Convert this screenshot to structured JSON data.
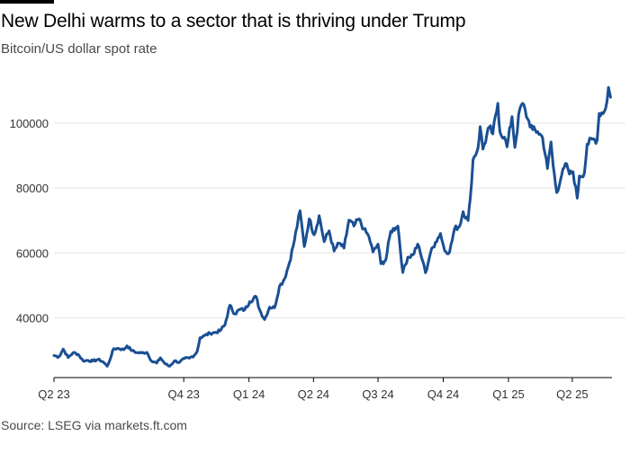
{
  "header": {
    "title": "New Delhi warms to a sector that is thriving under Trump",
    "subtitle": "Bitcoin/US dollar spot rate"
  },
  "footer": {
    "source": "Source: LSEG via markets.ft.com"
  },
  "colors": {
    "line": "#1a4f93",
    "grid": "#e6e6e6",
    "axis": "#000000",
    "tick_label": "#333333"
  },
  "chart_data": {
    "type": "line",
    "title": "New Delhi warms to a sector that is thriving under Trump",
    "subtitle": "Bitcoin/US dollar spot rate",
    "xlabel": "",
    "ylabel": "",
    "ylim": [
      23000,
      113000
    ],
    "grid": true,
    "y_ticks": [
      40000,
      60000,
      80000,
      100000
    ],
    "y_tick_labels": [
      "40000",
      "60000",
      "80000",
      "100000"
    ],
    "x_ticks": [
      {
        "label": "Q2 23",
        "date": "2023-04-01"
      },
      {
        "label": "Q4 23",
        "date": "2023-10-01"
      },
      {
        "label": "Q1 24",
        "date": "2024-01-01"
      },
      {
        "label": "Q2 24",
        "date": "2024-04-01"
      },
      {
        "label": "Q3 24",
        "date": "2024-07-01"
      },
      {
        "label": "Q4 24",
        "date": "2024-10-01"
      },
      {
        "label": "Q1 25",
        "date": "2025-01-01"
      },
      {
        "label": "Q2 25",
        "date": "2025-04-01"
      }
    ],
    "series": [
      {
        "points": [
          [
            "2023-04-01",
            28400
          ],
          [
            "2023-04-08",
            28000
          ],
          [
            "2023-04-14",
            30400
          ],
          [
            "2023-04-21",
            27800
          ],
          [
            "2023-04-28",
            29300
          ],
          [
            "2023-05-05",
            28800
          ],
          [
            "2023-05-12",
            26800
          ],
          [
            "2023-05-19",
            26900
          ],
          [
            "2023-05-26",
            26700
          ],
          [
            "2023-06-02",
            27200
          ],
          [
            "2023-06-09",
            26500
          ],
          [
            "2023-06-15",
            25100
          ],
          [
            "2023-06-21",
            28400
          ],
          [
            "2023-06-24",
            30500
          ],
          [
            "2023-07-01",
            30600
          ],
          [
            "2023-07-08",
            30200
          ],
          [
            "2023-07-13",
            31400
          ],
          [
            "2023-07-20",
            29900
          ],
          [
            "2023-07-27",
            29300
          ],
          [
            "2023-08-03",
            29200
          ],
          [
            "2023-08-10",
            29400
          ],
          [
            "2023-08-17",
            26600
          ],
          [
            "2023-08-24",
            26100
          ],
          [
            "2023-08-29",
            27700
          ],
          [
            "2023-09-05",
            25800
          ],
          [
            "2023-09-11",
            25100
          ],
          [
            "2023-09-18",
            26800
          ],
          [
            "2023-09-25",
            26300
          ],
          [
            "2023-10-02",
            27500
          ],
          [
            "2023-10-09",
            27600
          ],
          [
            "2023-10-16",
            28500
          ],
          [
            "2023-10-20",
            29700
          ],
          [
            "2023-10-24",
            33900
          ],
          [
            "2023-10-31",
            34600
          ],
          [
            "2023-11-07",
            35300
          ],
          [
            "2023-11-14",
            35500
          ],
          [
            "2023-11-21",
            36000
          ],
          [
            "2023-11-28",
            37800
          ],
          [
            "2023-12-05",
            43900
          ],
          [
            "2023-12-12",
            41200
          ],
          [
            "2023-12-19",
            42600
          ],
          [
            "2023-12-26",
            42500
          ],
          [
            "2024-01-02",
            45000
          ],
          [
            "2024-01-11",
            46600
          ],
          [
            "2024-01-16",
            42500
          ],
          [
            "2024-01-23",
            39500
          ],
          [
            "2024-01-30",
            43300
          ],
          [
            "2024-02-06",
            43100
          ],
          [
            "2024-02-13",
            49700
          ],
          [
            "2024-02-20",
            52000
          ],
          [
            "2024-02-27",
            57000
          ],
          [
            "2024-03-05",
            63800
          ],
          [
            "2024-03-13",
            73000
          ],
          [
            "2024-03-19",
            62000
          ],
          [
            "2024-03-26",
            70500
          ],
          [
            "2024-04-02",
            65600
          ],
          [
            "2024-04-09",
            71500
          ],
          [
            "2024-04-16",
            63500
          ],
          [
            "2024-04-23",
            66800
          ],
          [
            "2024-04-30",
            60600
          ],
          [
            "2024-05-07",
            63000
          ],
          [
            "2024-05-14",
            61500
          ],
          [
            "2024-05-21",
            70100
          ],
          [
            "2024-05-28",
            68300
          ],
          [
            "2024-06-04",
            70500
          ],
          [
            "2024-06-11",
            67300
          ],
          [
            "2024-06-18",
            65100
          ],
          [
            "2024-06-24",
            60300
          ],
          [
            "2024-07-01",
            62700
          ],
          [
            "2024-07-05",
            56700
          ],
          [
            "2024-07-12",
            57900
          ],
          [
            "2024-07-19",
            66700
          ],
          [
            "2024-07-26",
            67800
          ],
          [
            "2024-07-29",
            68300
          ],
          [
            "2024-08-05",
            54000
          ],
          [
            "2024-08-12",
            58700
          ],
          [
            "2024-08-19",
            59400
          ],
          [
            "2024-08-26",
            62700
          ],
          [
            "2024-09-02",
            57500
          ],
          [
            "2024-09-06",
            53900
          ],
          [
            "2024-09-13",
            60000
          ],
          [
            "2024-09-20",
            63300
          ],
          [
            "2024-09-27",
            66000
          ],
          [
            "2024-10-03",
            60700
          ],
          [
            "2024-10-10",
            60300
          ],
          [
            "2024-10-17",
            67500
          ],
          [
            "2024-10-24",
            68200
          ],
          [
            "2024-10-29",
            72700
          ],
          [
            "2024-11-05",
            70000
          ],
          [
            "2024-11-08",
            76500
          ],
          [
            "2024-11-12",
            88700
          ],
          [
            "2024-11-19",
            92300
          ],
          [
            "2024-11-22",
            98900
          ],
          [
            "2024-11-26",
            92000
          ],
          [
            "2024-12-05",
            98800
          ],
          [
            "2024-12-10",
            96700
          ],
          [
            "2024-12-17",
            106100
          ],
          [
            "2024-12-20",
            97300
          ],
          [
            "2024-12-26",
            95700
          ],
          [
            "2024-12-30",
            92700
          ],
          [
            "2025-01-06",
            102000
          ],
          [
            "2025-01-10",
            92500
          ],
          [
            "2025-01-17",
            104400
          ],
          [
            "2025-01-21",
            106100
          ],
          [
            "2025-01-28",
            101300
          ],
          [
            "2025-02-04",
            98000
          ],
          [
            "2025-02-11",
            97400
          ],
          [
            "2025-02-18",
            95600
          ],
          [
            "2025-02-25",
            86000
          ],
          [
            "2025-03-02",
            94200
          ],
          [
            "2025-03-05",
            87000
          ],
          [
            "2025-03-10",
            78600
          ],
          [
            "2025-03-17",
            84000
          ],
          [
            "2025-03-24",
            87500
          ],
          [
            "2025-03-28",
            84300
          ],
          [
            "2025-04-02",
            85000
          ],
          [
            "2025-04-08",
            76900
          ],
          [
            "2025-04-11",
            83700
          ],
          [
            "2025-04-18",
            84600
          ],
          [
            "2025-04-22",
            93500
          ],
          [
            "2025-04-29",
            95000
          ],
          [
            "2025-05-06",
            94700
          ],
          [
            "2025-05-09",
            103000
          ],
          [
            "2025-05-16",
            103500
          ],
          [
            "2025-05-20",
            106800
          ],
          [
            "2025-05-22",
            111000
          ],
          [
            "2025-05-25",
            108000
          ]
        ]
      }
    ]
  }
}
